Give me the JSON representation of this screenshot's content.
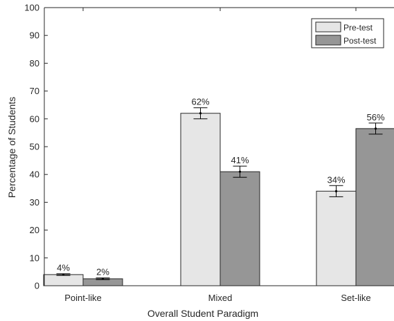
{
  "chart_data": {
    "type": "bar",
    "xlabel": "Overall Student Paradigm",
    "ylabel": "Percentage of Students",
    "categories": [
      "Point-like",
      "Mixed",
      "Set-like"
    ],
    "ylim": [
      0,
      100
    ],
    "yticks": [
      0,
      10,
      20,
      30,
      40,
      50,
      60,
      70,
      80,
      90,
      100
    ],
    "grid": false,
    "legend_position": "top-right",
    "series": [
      {
        "name": "Pre-test",
        "color": "#e6e6e6",
        "values": [
          4,
          62,
          34
        ],
        "errors": [
          0.3,
          2,
          2
        ],
        "labels": [
          "4%",
          "62%",
          "34%"
        ]
      },
      {
        "name": "Post-test",
        "color": "#969696",
        "values": [
          2.5,
          41,
          56.5
        ],
        "errors": [
          0.3,
          2,
          2
        ],
        "labels": [
          "2%",
          "41%",
          "56%"
        ]
      }
    ]
  }
}
